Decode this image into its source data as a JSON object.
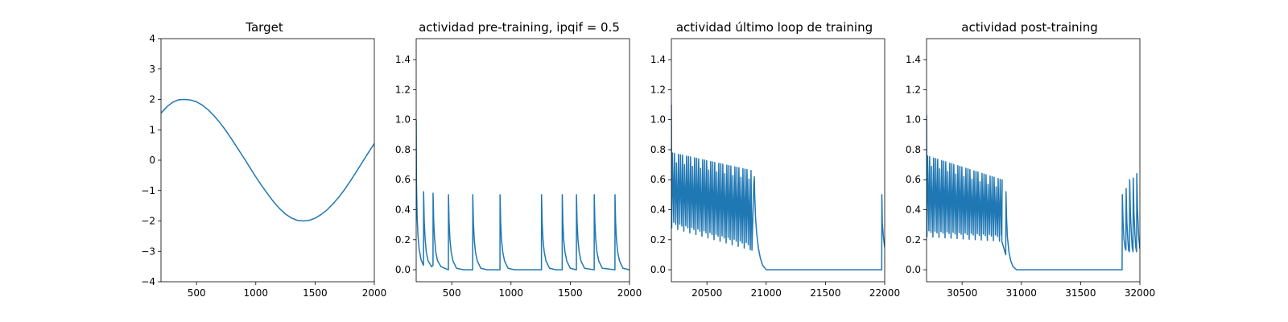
{
  "chart_data": [
    {
      "type": "line",
      "title": "Target",
      "xlabel": "",
      "ylabel": "",
      "xlim": [
        200,
        2000
      ],
      "ylim": [
        -4,
        4
      ],
      "xticks": [
        500,
        1000,
        1500,
        2000
      ],
      "yticks": [
        -4,
        -3,
        -2,
        -1,
        0,
        1,
        2,
        3,
        4
      ],
      "xtick_labels": [
        "500",
        "1000",
        "1500",
        "2000"
      ],
      "ytick_labels": [
        "−4",
        "−3",
        "−2",
        "−1",
        "0",
        "1",
        "2",
        "3",
        "4"
      ],
      "color": "#1f77b4",
      "series": [
        {
          "x": [
            200,
            250,
            300,
            350,
            400,
            450,
            500,
            550,
            600,
            650,
            700,
            750,
            800,
            850,
            900,
            950,
            1000,
            1050,
            1100,
            1150,
            1200,
            1250,
            1300,
            1350,
            1400,
            1450,
            1500,
            1550,
            1600,
            1650,
            1700,
            1750,
            1800,
            1850,
            1900,
            1950,
            2000
          ],
          "y": [
            1.55,
            1.76,
            1.91,
            1.99,
            2.0,
            1.98,
            1.92,
            1.81,
            1.65,
            1.45,
            1.22,
            0.96,
            0.67,
            0.37,
            0.07,
            -0.24,
            -0.55,
            -0.84,
            -1.11,
            -1.37,
            -1.59,
            -1.77,
            -1.9,
            -1.98,
            -2.0,
            -1.98,
            -1.91,
            -1.79,
            -1.64,
            -1.44,
            -1.22,
            -0.96,
            -0.67,
            -0.37,
            -0.06,
            0.25,
            0.55
          ]
        }
      ]
    },
    {
      "type": "line",
      "title": "actividad pre-training, ipqif = 0.5",
      "xlabel": "",
      "ylabel": "",
      "xlim": [
        200,
        2000
      ],
      "ylim": [
        -0.08,
        1.54
      ],
      "xticks": [
        500,
        1000,
        1500,
        2000
      ],
      "yticks": [
        0.0,
        0.2,
        0.4,
        0.6,
        0.8,
        1.0,
        1.2,
        1.4
      ],
      "xtick_labels": [
        "500",
        "1000",
        "1500",
        "2000"
      ],
      "ytick_labels": [
        "0.0",
        "0.2",
        "0.4",
        "0.6",
        "0.8",
        "1.0",
        "1.2",
        "1.4"
      ],
      "color": "#1f77b4",
      "series": [
        {
          "x": [
            200,
            202,
            208,
            215,
            225,
            240,
            255,
            262,
            262.5,
            268,
            275,
            285,
            300,
            330,
            342,
            342.5,
            348,
            355,
            365,
            380,
            410,
            470,
            472,
            472.5,
            478,
            485,
            495,
            510,
            540,
            600,
            675,
            677,
            677.5,
            683,
            690,
            700,
            715,
            745,
            800,
            905,
            907,
            907.5,
            913,
            920,
            930,
            945,
            975,
            1030,
            1255,
            1257,
            1257.5,
            1263,
            1270,
            1280,
            1295,
            1325,
            1380,
            1430,
            1432,
            1432.5,
            1438,
            1445,
            1455,
            1470,
            1500,
            1550,
            1552,
            1552.5,
            1558,
            1565,
            1575,
            1590,
            1620,
            1700,
            1702,
            1702.5,
            1708,
            1715,
            1725,
            1740,
            1770,
            1875,
            1877,
            1877.5,
            1883,
            1890,
            1900,
            1915,
            1945,
            2000
          ],
          "y": [
            1.0,
            0.6,
            0.35,
            0.23,
            0.14,
            0.07,
            0.04,
            0.03,
            0.52,
            0.32,
            0.21,
            0.12,
            0.06,
            0.02,
            0.03,
            0.51,
            0.32,
            0.21,
            0.12,
            0.06,
            0.02,
            0.0,
            0.0,
            0.5,
            0.31,
            0.2,
            0.12,
            0.06,
            0.01,
            0.0,
            0.0,
            0.0,
            0.5,
            0.31,
            0.2,
            0.12,
            0.06,
            0.01,
            0.0,
            0.0,
            0.0,
            0.5,
            0.31,
            0.2,
            0.12,
            0.06,
            0.01,
            0.0,
            0.0,
            0.0,
            0.5,
            0.31,
            0.2,
            0.12,
            0.06,
            0.01,
            0.0,
            0.0,
            0.0,
            0.5,
            0.31,
            0.2,
            0.12,
            0.06,
            0.01,
            0.0,
            0.0,
            0.5,
            0.31,
            0.2,
            0.12,
            0.06,
            0.01,
            0.0,
            0.0,
            0.5,
            0.31,
            0.2,
            0.12,
            0.06,
            0.01,
            0.0,
            0.0,
            0.5,
            0.31,
            0.2,
            0.12,
            0.06,
            0.01,
            0.0
          ]
        }
      ]
    },
    {
      "type": "line",
      "title": "actividad último loop de training",
      "xlabel": "",
      "ylabel": "",
      "xlim": [
        20200,
        22000
      ],
      "ylim": [
        -0.08,
        1.54
      ],
      "xticks": [
        20500,
        21000,
        21500,
        22000
      ],
      "yticks": [
        0.0,
        0.2,
        0.4,
        0.6,
        0.8,
        1.0,
        1.2,
        1.4
      ],
      "xtick_labels": [
        "20500",
        "21000",
        "21500",
        "22000"
      ],
      "ytick_labels": [
        "0.0",
        "0.2",
        "0.4",
        "0.6",
        "0.8",
        "1.0",
        "1.2",
        "1.4"
      ],
      "color": "#1f77b4",
      "oscillation": {
        "start": 20200,
        "end": 20880,
        "period": 17,
        "start_value": 1.1,
        "peak_start": 0.78,
        "peak_end": 0.66,
        "trough_start": 0.28,
        "trough_end": 0.13
      },
      "series": [
        {
          "x": [
            20880,
            20895,
            20900,
            20903,
            20910,
            20920,
            20935,
            20950,
            20970,
            21000,
            21100,
            21500,
            21975,
            21976,
            21980,
            21990,
            22000
          ],
          "y": [
            0.13,
            0.56,
            0.62,
            0.5,
            0.35,
            0.24,
            0.14,
            0.08,
            0.03,
            0.0,
            0.0,
            0.0,
            0.0,
            0.5,
            0.31,
            0.21,
            0.15
          ]
        }
      ]
    },
    {
      "type": "line",
      "title": "actividad post-training",
      "xlabel": "",
      "ylabel": "",
      "xlim": [
        30200,
        32000
      ],
      "ylim": [
        -0.08,
        1.54
      ],
      "xticks": [
        30500,
        31000,
        31500,
        32000
      ],
      "yticks": [
        0.0,
        0.2,
        0.4,
        0.6,
        0.8,
        1.0,
        1.2,
        1.4
      ],
      "xtick_labels": [
        "30500",
        "31000",
        "31500",
        "32000"
      ],
      "ytick_labels": [
        "0.0",
        "0.2",
        "0.4",
        "0.6",
        "0.8",
        "1.0",
        "1.2",
        "1.4"
      ],
      "color": "#1f77b4",
      "oscillation": {
        "start": 30200,
        "end": 30835,
        "period": 17,
        "start_value": 1.03,
        "peak_start": 0.76,
        "peak_end": 0.6,
        "trough_start": 0.22,
        "trough_end": 0.19
      },
      "series": [
        {
          "x": [
            30835,
            30868,
            30870,
            30875,
            30882,
            30895,
            30910,
            30930,
            30960,
            31000,
            31300,
            31850,
            31852,
            31858,
            31866,
            31875,
            31882,
            31884,
            31890,
            31898,
            31905,
            31912,
            31914,
            31920,
            31928,
            31935,
            31942,
            31944,
            31950,
            31958,
            31965,
            31972,
            31974,
            31980,
            31990,
            32000
          ],
          "y": [
            0.19,
            0.1,
            0.52,
            0.35,
            0.22,
            0.12,
            0.06,
            0.02,
            0.0,
            0.0,
            0.0,
            0.0,
            0.5,
            0.32,
            0.2,
            0.15,
            0.13,
            0.54,
            0.32,
            0.2,
            0.13,
            0.12,
            0.6,
            0.38,
            0.24,
            0.15,
            0.12,
            0.61,
            0.38,
            0.24,
            0.15,
            0.12,
            0.64,
            0.4,
            0.22,
            0.14
          ]
        }
      ]
    }
  ]
}
